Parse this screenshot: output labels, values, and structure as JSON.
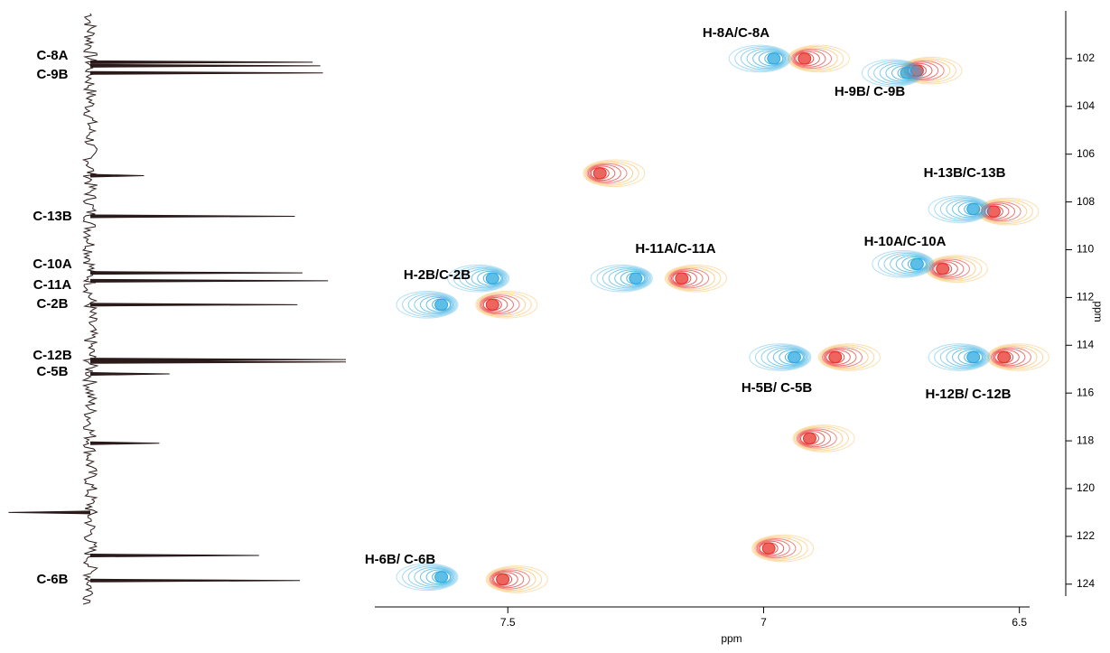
{
  "chart_data": {
    "type": "scatter",
    "x_label": "ppm",
    "y_label": "ppm",
    "xlim": [
      7.76,
      6.48
    ],
    "ylim": [
      100,
      124.5
    ],
    "xticks": [
      7.5,
      7.0,
      6.5
    ],
    "yticks": [
      102,
      104,
      106,
      108,
      110,
      112,
      114,
      116,
      118,
      120,
      122,
      124
    ],
    "series": [
      {
        "color": "#e8302a",
        "x": [
          6.92,
          6.7,
          7.32,
          6.55,
          6.65,
          7.16,
          7.53,
          6.86,
          6.53,
          6.91,
          6.99,
          7.51
        ],
        "y": [
          102.0,
          102.5,
          106.8,
          108.4,
          110.8,
          111.2,
          112.3,
          114.5,
          114.5,
          117.9,
          122.5,
          123.8
        ]
      },
      {
        "color": "#29a8e0",
        "x": [
          6.98,
          6.72,
          6.59,
          6.7,
          7.25,
          7.63,
          7.53,
          6.94,
          6.59,
          7.63
        ],
        "y": [
          102.0,
          102.6,
          108.3,
          110.6,
          111.2,
          112.3,
          111.2,
          114.5,
          114.5,
          123.7
        ]
      }
    ],
    "annotations": [
      "H-8A/C-8A",
      "H-9B/ C-9B",
      "H-13B/C-13B",
      "H-10A/C-10A",
      "H-11A/C-11A",
      "H-2B/C-2B",
      "H-5B/ C-5B",
      "H-12B/ C-12B",
      "H-6B/ C-6B"
    ],
    "projection": {
      "peaks": [
        102.15,
        102.3,
        102.6,
        106.9,
        108.6,
        110.97,
        111.3,
        112.3,
        114.6,
        114.7,
        115.2,
        118.1,
        121.0,
        122.8,
        123.85
      ],
      "intensities": [
        0.87,
        0.9,
        0.91,
        0.21,
        0.8,
        0.83,
        0.93,
        0.81,
        1.0,
        1.0,
        0.31,
        0.27,
        -0.32,
        0.66,
        0.82
      ],
      "labels": [
        "C-8A",
        "C-9B",
        "C-13B",
        "C-10A",
        "C-11A",
        "C-2B",
        "C-12B",
        "C-5B",
        "C-6B"
      ]
    }
  }
}
